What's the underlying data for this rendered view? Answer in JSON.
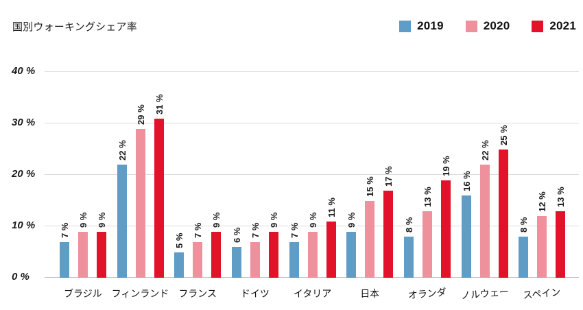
{
  "page": {
    "background": "#FFFFFF"
  },
  "chart_data": {
    "type": "bar",
    "title": "国別ウォーキングシェア率",
    "categories": [
      "ブラジル",
      "フィンランド",
      "フランス",
      "ドイツ",
      "イタリア",
      "日本",
      "オランダ",
      "ノルウェー",
      "スペイン"
    ],
    "series": [
      {
        "name": "2019",
        "color": "#5F9CC6",
        "values": [
          7,
          22,
          5,
          6,
          7,
          9,
          8,
          16,
          8
        ]
      },
      {
        "name": "2020",
        "color": "#EE919D",
        "values": [
          9,
          29,
          7,
          7,
          9,
          15,
          13,
          22,
          12
        ]
      },
      {
        "name": "2021",
        "color": "#E2122B",
        "values": [
          9,
          31,
          9,
          9,
          11,
          17,
          19,
          25,
          13
        ]
      }
    ],
    "value_label_suffix": " %",
    "y_axis": {
      "min": 0,
      "max": 40,
      "tick_step": 10,
      "tick_labels": [
        "0 %",
        "10 %",
        "20 %",
        "30 %",
        "40 %"
      ],
      "tick_label_style": "italic"
    },
    "xlabel": "",
    "ylabel": "",
    "grid": "horizontal",
    "legend_position": "top-right",
    "value_labels": "rotated-90-above-bars",
    "colors": {
      "grid_line": "#DBDBDB",
      "axis_line": "#C2C2C2",
      "text": "#1A1A1A",
      "background": "#FFFFFF"
    }
  }
}
